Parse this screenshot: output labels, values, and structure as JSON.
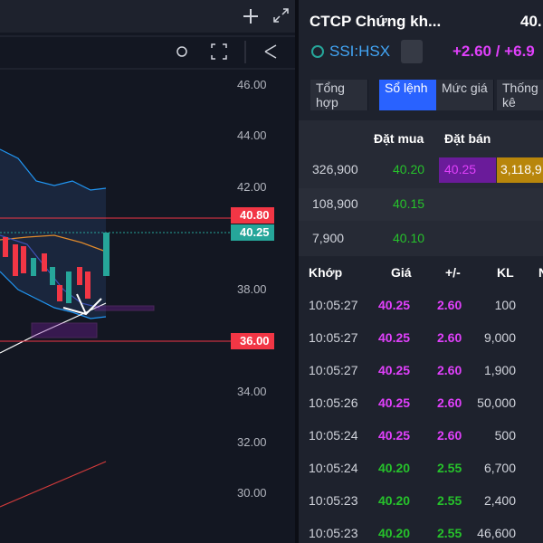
{
  "chart_panel": {
    "price_axis": [
      "46.00",
      "44.00",
      "42.00",
      "38.00",
      "34.00",
      "32.00",
      "30.00"
    ],
    "price_labels": [
      "40.80",
      "40.25",
      "36.00"
    ]
  },
  "header": {
    "title": "CTCP Chứng kh...",
    "price": "40.",
    "symbol": "SSI:HSX",
    "change": "+2.60 / +6.9"
  },
  "tabs": [
    "Tổng hợp",
    "Sổ lệnh",
    "Mức giá",
    "Thống kê"
  ],
  "order_book": {
    "headers": [
      "Đặt mua",
      "Đặt bán"
    ],
    "rows": [
      [
        "326,900",
        "40.20",
        "40.25",
        "3,118,9"
      ],
      [
        "108,900",
        "40.15"
      ],
      [
        "7,900",
        "40.10"
      ]
    ]
  },
  "trades": {
    "headers": [
      "Khớp",
      "Giá",
      "+/-",
      "KL",
      "N"
    ],
    "rows": [
      [
        "10:05:27",
        "40.25",
        "2.60",
        "100"
      ],
      [
        "10:05:27",
        "40.25",
        "2.60",
        "9,000"
      ],
      [
        "10:05:27",
        "40.25",
        "2.60",
        "1,900"
      ],
      [
        "10:05:26",
        "40.25",
        "2.60",
        "50,000"
      ],
      [
        "10:05:24",
        "40.25",
        "2.60",
        "500"
      ],
      [
        "10:05:24",
        "40.20",
        "2.55",
        "6,700"
      ],
      [
        "10:05:23",
        "40.20",
        "2.55",
        "2,400"
      ],
      [
        "10:05:23",
        "40.20",
        "2.55",
        "46,600"
      ]
    ]
  }
}
